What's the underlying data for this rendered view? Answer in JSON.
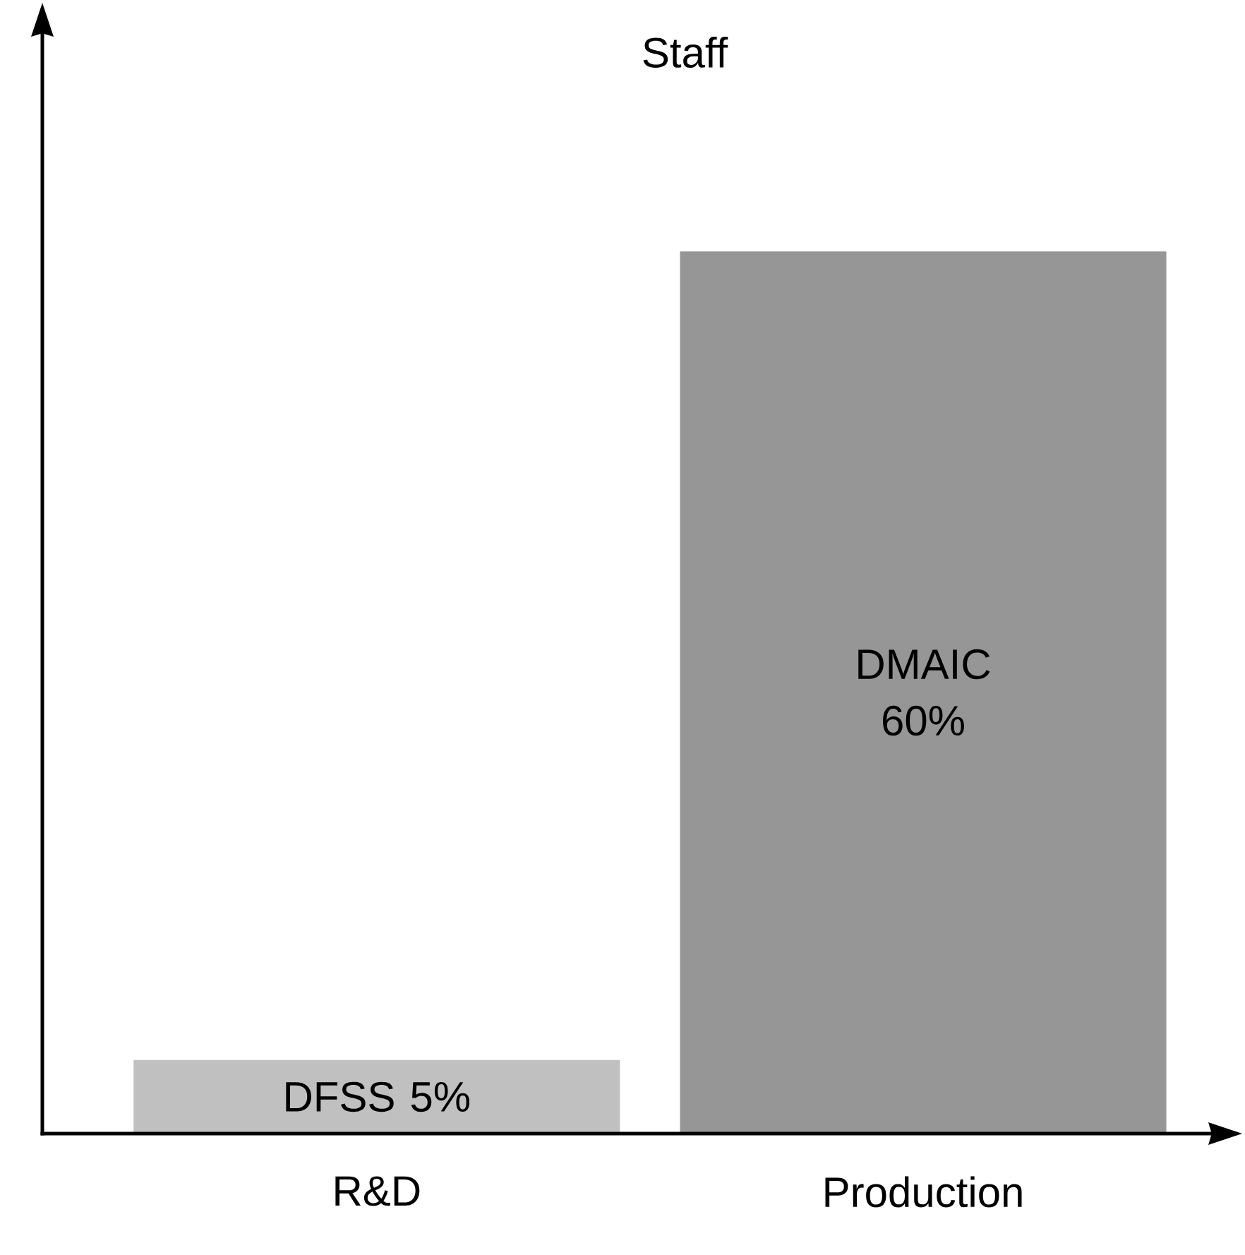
{
  "chart_data": {
    "type": "bar",
    "ylabel": "Staff",
    "categories": [
      "R&D",
      "Production"
    ],
    "values": [
      5,
      60
    ],
    "colors": [
      "#c0c0c0",
      "#969696"
    ],
    "value_labels": [
      "DFSS 5%",
      "DMAIC 60%"
    ]
  }
}
